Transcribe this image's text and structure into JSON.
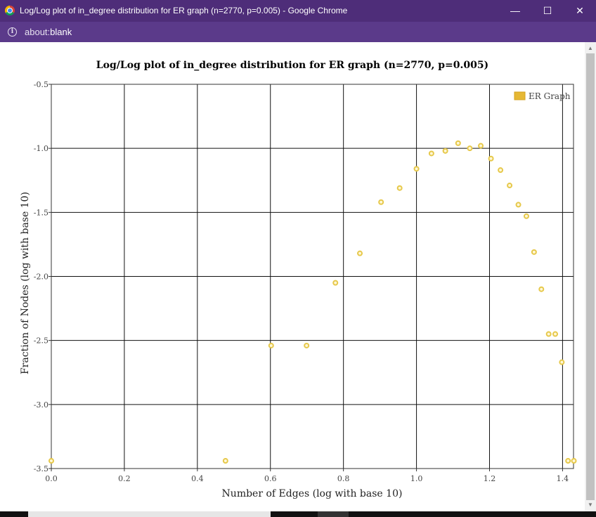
{
  "window": {
    "title": "Log/Log plot of in_degree distribution for ER graph (n=2770, p=0.005) - Google Chrome",
    "minimize_glyph": "—",
    "maximize_glyph": "☐",
    "close_glyph": "✕"
  },
  "address": {
    "prefix": "about:",
    "host": "blank",
    "icon": "info-icon"
  },
  "colors": {
    "titlebar": "#4e2d79",
    "addressbar": "#5b3a8a",
    "marker_stroke": "#e6c84a",
    "legend_fill": "#e6b834"
  },
  "chart_data": {
    "type": "scatter",
    "title": "Log/Log plot of in_degree distribution for ER graph (n=2770, p=0.005)",
    "xlabel": "Number of Edges (log with base 10)",
    "ylabel": "Fraction of Nodes (log with base 10)",
    "xlim": [
      0,
      1.43
    ],
    "ylim": [
      -3.5,
      -0.5
    ],
    "xticks": [
      0.0,
      0.2,
      0.4,
      0.6,
      0.8,
      1.0,
      1.2,
      1.4
    ],
    "xtick_labels": [
      "0.0",
      "0.2",
      "0.4",
      "0.6",
      "0.8",
      "1.0",
      "1.2",
      "1.4"
    ],
    "yticks": [
      -0.5,
      -1.0,
      -1.5,
      -2.0,
      -2.5,
      -3.0,
      -3.5
    ],
    "ytick_labels": [
      "-0.5",
      "-1.0",
      "-1.5",
      "-2.0",
      "-2.5",
      "-3.0",
      "-3.5"
    ],
    "grid": true,
    "legend_position": "top-right",
    "series": [
      {
        "name": "ER Graph",
        "color": "#e6c84a",
        "points": [
          [
            0.0,
            -3.44
          ],
          [
            0.477,
            -3.44
          ],
          [
            0.602,
            -2.54
          ],
          [
            0.699,
            -2.54
          ],
          [
            0.778,
            -2.05
          ],
          [
            0.845,
            -1.82
          ],
          [
            0.903,
            -1.42
          ],
          [
            0.954,
            -1.31
          ],
          [
            1.0,
            -1.16
          ],
          [
            1.041,
            -1.04
          ],
          [
            1.079,
            -1.02
          ],
          [
            1.114,
            -0.96
          ],
          [
            1.146,
            -1.0
          ],
          [
            1.176,
            -0.98
          ],
          [
            1.204,
            -1.08
          ],
          [
            1.23,
            -1.17
          ],
          [
            1.255,
            -1.29
          ],
          [
            1.279,
            -1.44
          ],
          [
            1.301,
            -1.53
          ],
          [
            1.322,
            -1.81
          ],
          [
            1.342,
            -2.1
          ],
          [
            1.362,
            -2.45
          ],
          [
            1.38,
            -2.45
          ],
          [
            1.398,
            -2.67
          ],
          [
            1.415,
            -3.44
          ],
          [
            1.431,
            -3.44
          ]
        ]
      }
    ]
  }
}
